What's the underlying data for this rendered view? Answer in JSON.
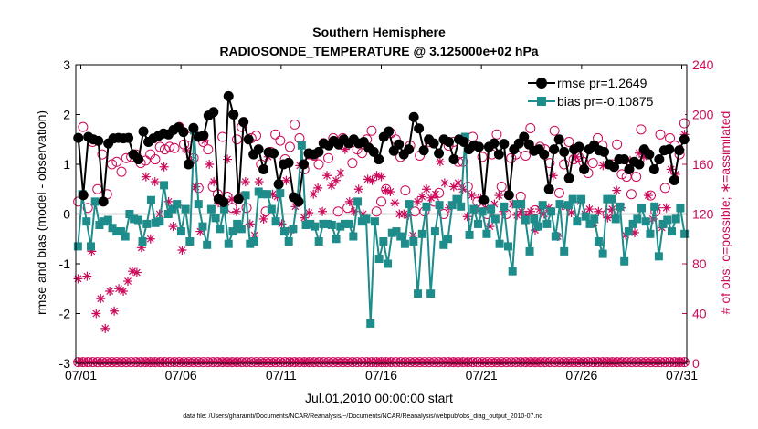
{
  "chart_data": {
    "type": "line",
    "title": "Southern Hemisphere",
    "subtitle": "RADIOSONDE_TEMPERATURE @ 3.125000e+02 hPa",
    "xlabel": "Jul.01,2010 00:00:00 start",
    "ylabel": "rmse and bias (model - observation)",
    "y2label": "# of obs: o=possible; ∗=assimilated",
    "footer": "data file: /Users/gharamti/Documents/NCAR/Reanalysis/~/Documents/NCAR/Reanalysis/webpub/obs_diag_output_2010-07.nc",
    "xlim": [
      0.75,
      31.25
    ],
    "ylim": [
      -3,
      3
    ],
    "y2lim": [
      0,
      240
    ],
    "xtick_values": [
      1,
      6,
      11,
      16,
      21,
      26,
      31
    ],
    "xtick_labels": [
      "07/01",
      "07/06",
      "07/11",
      "07/16",
      "07/21",
      "07/26",
      "07/31"
    ],
    "yticks": [
      -3,
      -2,
      -1,
      0,
      1,
      2,
      3
    ],
    "y2ticks": [
      0,
      40,
      80,
      120,
      160,
      200,
      240
    ],
    "colors": {
      "rmse": "#000000",
      "bias": "#1e8c8a",
      "obs": "#cc0a5a",
      "zero": "#a8a8a8"
    },
    "series": [
      {
        "name": "rmse pr=1.2649",
        "key": "rmse",
        "values": [
          1.53,
          0.38,
          1.55,
          1.5,
          1.47,
          0.25,
          1.42,
          1.52,
          1.53,
          1.52,
          1.53,
          1.2,
          1.1,
          1.66,
          1.45,
          1.52,
          1.57,
          1.62,
          1.6,
          1.69,
          1.74,
          1.65,
          1.0,
          1.73,
          1.55,
          1.58,
          1.98,
          2.05,
          0.3,
          0.24,
          2.37,
          2.0,
          0.3,
          1.85,
          1.5,
          1.2,
          1.3,
          0.9,
          1.24,
          1.22,
          0.6,
          1.0,
          1.03,
          0.34,
          0.25,
          1.0,
          1.22,
          1.2,
          1.25,
          1.42,
          1.38,
          1.47,
          1.4,
          1.5,
          1.42,
          1.5,
          1.42,
          1.45,
          1.33,
          1.25,
          1.1,
          1.55,
          1.66,
          1.27,
          1.4,
          1.2,
          1.3,
          1.95,
          1.72,
          1.28,
          1.5,
          1.42,
          1.22,
          1.5,
          1.45,
          1.1,
          1.5,
          1.45,
          1.3,
          1.38,
          1.35,
          0.28,
          1.35,
          1.42,
          1.2,
          1.41,
          0.38,
          1.3,
          1.42,
          1.55,
          1.4,
          1.27,
          1.3,
          1.2,
          0.5,
          1.3,
          1.5,
          1.25,
          0.72,
          1.3,
          1.35,
          0.9,
          1.3,
          1.38,
          1.28,
          1.25,
          1.0,
          0.95,
          1.1,
          1.1,
          0.9,
          1.05,
          1.0,
          1.3,
          1.2,
          0.9,
          1.1,
          1.28,
          1.3,
          0.68,
          1.28,
          1.5
        ]
      },
      {
        "name": "bias pr=-0.10875",
        "key": "bias",
        "values": [
          -0.65,
          0.4,
          -0.15,
          -0.65,
          0.25,
          -0.22,
          -0.15,
          -0.12,
          -0.28,
          -0.35,
          -0.35,
          -0.45,
          0.0,
          -0.1,
          -0.12,
          -0.55,
          -0.2,
          0.28,
          -0.18,
          -0.15,
          0.58,
          0.0,
          0.1,
          0.2,
          -0.35,
          0.1,
          -0.55,
          1.68,
          0.2,
          -0.25,
          -0.62,
          0.1,
          -0.08,
          -0.3,
          0.1,
          -0.6,
          -0.35,
          -0.2,
          -0.3,
          0.38,
          -0.6,
          -0.55,
          0.45,
          0.4,
          0.4,
          0.1,
          -0.15,
          0.42,
          -0.35,
          -0.55,
          -0.3,
          0.3,
          1.38,
          -0.22,
          -0.2,
          -0.25,
          -0.55,
          -0.2,
          -0.2,
          -0.22,
          -0.5,
          -0.25,
          -0.2,
          -0.2,
          -0.45,
          0.25,
          -0.15,
          -0.1,
          -2.2,
          -0.15,
          -0.9,
          -0.55,
          -1.0,
          -0.38,
          -0.35,
          -0.45,
          -0.6,
          0.2,
          -0.55,
          -1.6,
          -0.4,
          0.15,
          -1.6,
          -0.35,
          0.18,
          -0.62,
          -0.5,
          0.18,
          0.3,
          0.15,
          1.55,
          -0.42,
          0.1,
          -0.2,
          0.05,
          -0.4,
          0.1,
          -0.1,
          -0.6,
          0.15,
          -0.65,
          -1.15,
          0.2,
          0.2,
          -0.12,
          -0.75,
          -0.1,
          -0.25,
          0.18,
          -0.2,
          0.05,
          -0.45,
          0.2,
          -0.75,
          0.18,
          0.3,
          -0.15,
          0.3,
          -0.05,
          -0.2,
          -0.1,
          -0.55,
          -0.8,
          0.3,
          0.3,
          -0.1,
          0.15,
          -0.95,
          -0.35,
          -0.2,
          -0.1,
          0.12,
          -0.15,
          -0.4,
          0.15,
          -0.85,
          -0.2,
          -0.12,
          -0.35,
          -0.1,
          0.12,
          -0.4
        ]
      },
      {
        "name": "possible",
        "key": "possible",
        "values": [
          130,
          190,
          125,
          178,
          140,
          168,
          136,
          160,
          162,
          154,
          165,
          166,
          168,
          161,
          163,
          168,
          164,
          174,
          172,
          174,
          173,
          190,
          176,
          182,
          165,
          141,
          178,
          172,
          142,
          136,
          182,
          134,
          125,
          180,
          190,
          125,
          181,
          183,
          160,
          122,
          170,
          184,
          179,
          164,
          174,
          192,
          181,
          156,
          168,
          167,
          160,
          177,
          165,
          181,
          122,
          181,
          125,
          161,
          172,
          169,
          180,
          187,
          122,
          130,
          140,
          185,
          180,
          166,
          139,
          175,
          122,
          167,
          122,
          178,
          130,
          137,
          120,
          175,
          178,
          162,
          162,
          142,
          182,
          130,
          166,
          120,
          168,
          184,
          142,
          120,
          165,
          168,
          134,
          167,
          189,
          123,
          174,
          172,
          161,
          187,
          137,
          160,
          178,
          164,
          166,
          162,
          153,
          161,
          181,
          175,
          120,
          160,
          176,
          152,
          150,
          136,
          150,
          188,
          170,
          135,
          122,
          184,
          141,
          181,
          175,
          168,
          193
        ]
      },
      {
        "name": "assimilated",
        "key": "assimilated",
        "values": [
          68,
          136,
          70,
          90,
          40,
          52,
          28,
          58,
          42,
          60,
          58,
          66,
          74,
          73,
          93,
          150,
          100,
          146,
          120,
          158,
          130,
          110,
          127,
          91,
          171,
          163,
          142,
          106,
          179,
          160,
          146,
          129,
          128,
          164,
          132,
          122,
          134,
          146,
          112,
          103,
          146,
          116,
          166,
          136,
          134,
          112,
          147,
          107,
          126,
          159,
          117,
          121,
          136,
          141,
          122,
          151,
          143,
          147,
          153,
          172,
          130,
          122,
          140,
          120,
          148,
          147,
          151,
          150,
          139,
          138,
          129,
          120,
          120,
          119,
          103,
          130,
          134,
          140,
          133,
          136,
          162,
          145,
          125,
          142,
          145,
          140,
          118,
          135,
          124,
          133,
          125,
          110,
          128,
          135,
          122,
          136,
          128,
          119,
          122,
          119,
          122,
          107,
          124,
          120,
          125,
          151,
          102,
          127,
          126,
          121,
          166,
          130,
          120,
          124,
          113,
          122,
          159,
          117,
          124,
          139,
          125,
          103,
          163,
          105,
          169,
          166,
          135,
          116,
          125,
          109,
          125,
          156,
          152,
          172,
          184
        ]
      }
    ],
    "legend": {
      "position": "top-right",
      "entries": [
        "rmse pr=1.2649",
        "bias pr=-0.10875"
      ]
    }
  }
}
